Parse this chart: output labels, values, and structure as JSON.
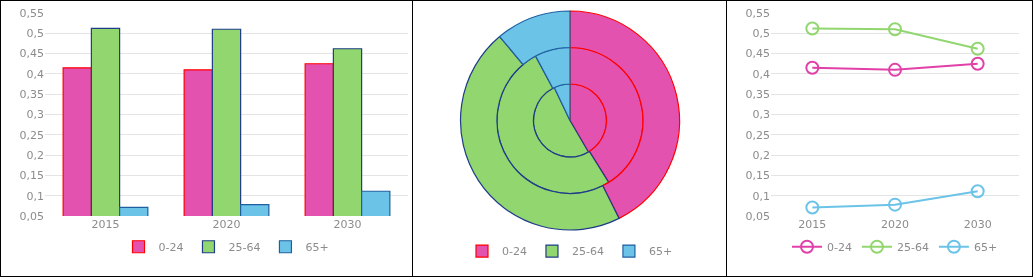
{
  "chart_data": [
    {
      "type": "bar",
      "categories": [
        "2015",
        "2020",
        "2030"
      ],
      "series": [
        {
          "name": "0-24",
          "color": "#e452b0",
          "values": [
            0.415,
            0.41,
            0.425
          ]
        },
        {
          "name": "25-64",
          "color": "#92d66f",
          "values": [
            0.512,
            0.51,
            0.462
          ]
        },
        {
          "name": "65+",
          "color": "#6cc3e8",
          "values": [
            0.071,
            0.078,
            0.111
          ]
        }
      ],
      "ylim": [
        0.05,
        0.55
      ],
      "yticks": [
        {
          "value": 0.05,
          "label": "0,05"
        },
        {
          "value": 0.1,
          "label": "0,1"
        },
        {
          "value": 0.15,
          "label": "0,15"
        },
        {
          "value": 0.2,
          "label": "0,2"
        },
        {
          "value": 0.25,
          "label": "0,25"
        },
        {
          "value": 0.3,
          "label": "0,3"
        },
        {
          "value": 0.35,
          "label": "0,35"
        },
        {
          "value": 0.4,
          "label": "0,4"
        },
        {
          "value": 0.45,
          "label": "0,45"
        },
        {
          "value": 0.5,
          "label": "0,5"
        },
        {
          "value": 0.55,
          "label": "0,55"
        }
      ],
      "grid": "y",
      "legend": "bottom"
    },
    {
      "type": "donut",
      "categories": [
        "0-24",
        "25-64",
        "65+"
      ],
      "colors": [
        "#e452b0",
        "#92d66f",
        "#6cc3e8"
      ],
      "series": [
        {
          "values": [
            41.6,
            51.3,
            7.1
          ]
        },
        {
          "values": [
            41.1,
            51.1,
            7.8
          ]
        },
        {
          "values": [
            42.6,
            46.3,
            11.1
          ]
        }
      ],
      "legend": "bottom"
    },
    {
      "type": "line",
      "categories": [
        "2015",
        "2020",
        "2030"
      ],
      "series": [
        {
          "name": "0-24",
          "color": "#e040a8",
          "values": [
            0.415,
            0.41,
            0.425
          ]
        },
        {
          "name": "25-64",
          "color": "#92d66f",
          "values": [
            0.512,
            0.51,
            0.462
          ]
        },
        {
          "name": "65+",
          "color": "#6cc3e8",
          "values": [
            0.071,
            0.078,
            0.111
          ]
        }
      ],
      "ylim": [
        0.05,
        0.55
      ],
      "yticks": [
        {
          "value": 0.05,
          "label": "0,05"
        },
        {
          "value": 0.1,
          "label": "0,1"
        },
        {
          "value": 0.15,
          "label": "0,15"
        },
        {
          "value": 0.2,
          "label": "0,2"
        },
        {
          "value": 0.25,
          "label": "0,25"
        },
        {
          "value": 0.3,
          "label": "0,3"
        },
        {
          "value": 0.35,
          "label": "0,35"
        },
        {
          "value": 0.4,
          "label": "0,4"
        },
        {
          "value": 0.45,
          "label": "0,45"
        },
        {
          "value": 0.5,
          "label": "0,5"
        },
        {
          "value": 0.55,
          "label": "0,55"
        }
      ],
      "grid": "y",
      "legend": "bottom",
      "marker": "circle",
      "line_style": "solid"
    }
  ]
}
